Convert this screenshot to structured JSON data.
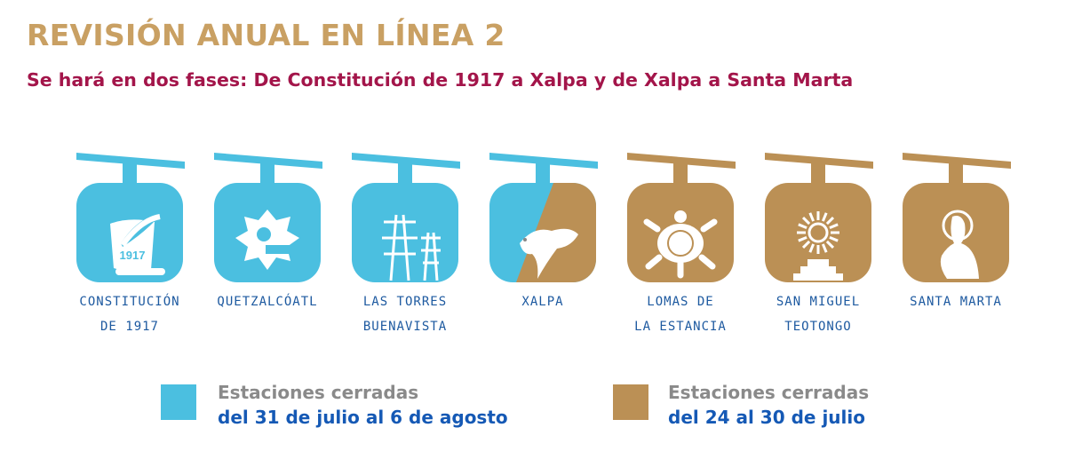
{
  "title": "REVISIÓN ANUAL EN LÍNEA 2",
  "subtitle": "Se hará en dos fases: De Constitución de 1917 a Xalpa y de Xalpa a Santa Marta",
  "colors": {
    "phase1": "#4BBFE0",
    "phase2": "#BB9055"
  },
  "stations": [
    {
      "line1": "CONSTITUCIÓN",
      "line2": "DE 1917",
      "icon": "scroll-quill-icon",
      "phase": "phase1",
      "icon_text": "1917"
    },
    {
      "line1": "QUETZALCÓATL",
      "line2": "",
      "icon": "serpent-head-icon",
      "phase": "phase1"
    },
    {
      "line1": "LAS TORRES",
      "line2": "BUENAVISTA",
      "icon": "power-towers-icon",
      "phase": "phase1"
    },
    {
      "line1": "XALPA",
      "line2": "",
      "icon": "lizard-icon",
      "phase": "both"
    },
    {
      "line1": "LOMAS DE",
      "line2": "LA ESTANCIA",
      "icon": "turtle-icon",
      "phase": "phase2"
    },
    {
      "line1": "SAN MIGUEL",
      "line2": "TEOTONGO",
      "icon": "sun-pyramid-icon",
      "phase": "phase2"
    },
    {
      "line1": "SANTA MARTA",
      "line2": "",
      "icon": "saint-icon",
      "phase": "phase2"
    }
  ],
  "legend": [
    {
      "line1": "Estaciones cerradas",
      "line2": "del 31 de julio al 6 de agosto",
      "color": "#4BBFE0"
    },
    {
      "line1": "Estaciones cerradas",
      "line2": "del 24 al 30 de julio",
      "color": "#BB9055"
    }
  ]
}
